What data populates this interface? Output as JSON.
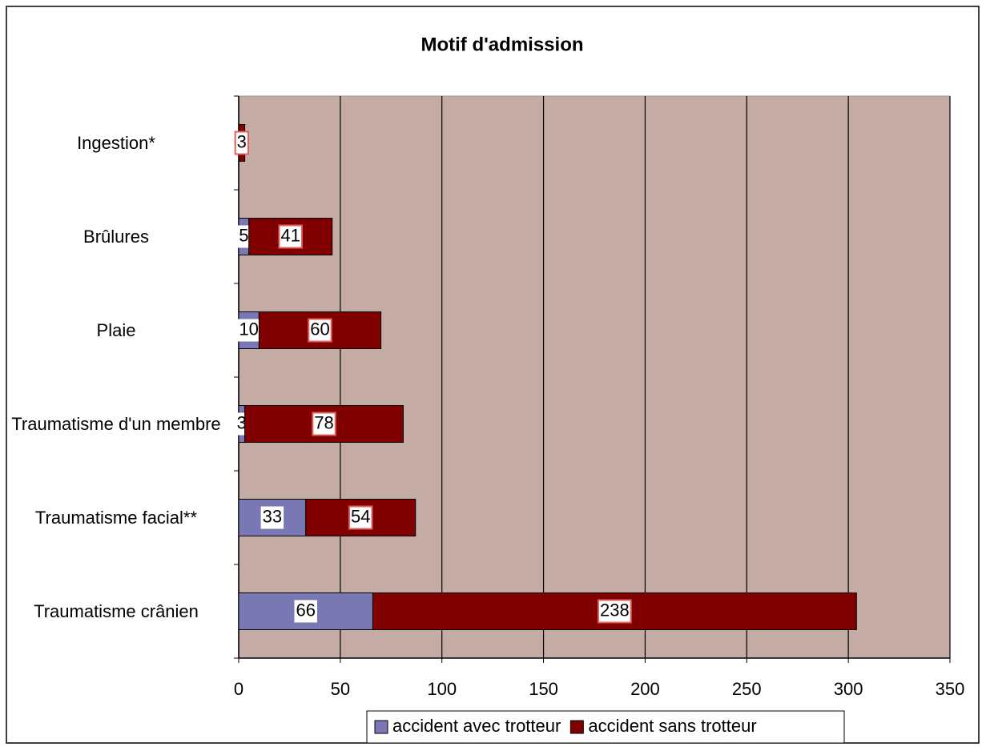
{
  "chart_data": {
    "type": "stacked_barh",
    "title": "Motif d'admission",
    "categories": [
      "Ingestion*",
      "Brûlures",
      "Plaie",
      "Traumatisme d'un membre",
      "Traumatisme facial**",
      "Traumatisme crânien"
    ],
    "series": [
      {
        "name": "accident avec trotteur",
        "color": "#7a78b4",
        "values": [
          0,
          5,
          10,
          3,
          33,
          66
        ]
      },
      {
        "name": "accident sans trotteur",
        "color": "#800000",
        "values": [
          3,
          41,
          60,
          78,
          54,
          238
        ]
      }
    ],
    "xlim": [
      0,
      350
    ],
    "xticks": [
      0,
      50,
      100,
      150,
      200,
      250,
      300,
      350
    ],
    "grid": true,
    "legend": "bottom"
  }
}
